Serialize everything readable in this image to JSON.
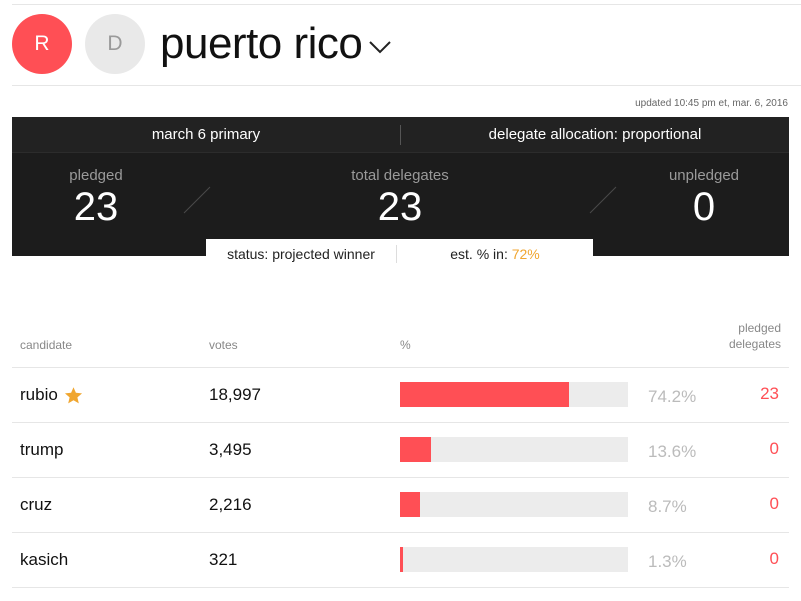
{
  "header": {
    "party_r": "R",
    "party_d": "D",
    "state_name": "puerto rico",
    "updated": "updated 10:45 pm et, mar. 6, 2016"
  },
  "board": {
    "event": "march 6 primary",
    "allocation": "delegate allocation: proportional",
    "pledged_label": "pledged",
    "pledged_value": "23",
    "total_label": "total delegates",
    "total_value": "23",
    "unpledged_label": "unpledged",
    "unpledged_value": "0",
    "status": "status: projected winner",
    "est_label": "est. % in: ",
    "est_value": "72%"
  },
  "table": {
    "headers": {
      "candidate": "candidate",
      "votes": "votes",
      "pct": "%",
      "delegates_line1": "pledged",
      "delegates_line2": "delegates"
    },
    "rows": [
      {
        "name": "rubio",
        "winner": true,
        "votes": "18,997",
        "pct": "74.2%",
        "share": 74.2,
        "delegates": "23"
      },
      {
        "name": "trump",
        "winner": false,
        "votes": "3,495",
        "pct": "13.6%",
        "share": 13.6,
        "delegates": "0"
      },
      {
        "name": "cruz",
        "winner": false,
        "votes": "2,216",
        "pct": "8.7%",
        "share": 8.7,
        "delegates": "0"
      },
      {
        "name": "kasich",
        "winner": false,
        "votes": "321",
        "pct": "1.3%",
        "share": 1.3,
        "delegates": "0"
      }
    ]
  },
  "colors": {
    "accent_red": "#ff4f55",
    "highlight_orange": "#f0a630",
    "board_bg": "#1c1c1c"
  },
  "icons": {
    "dropdown": "chevron-down-icon",
    "winner": "star-icon"
  }
}
